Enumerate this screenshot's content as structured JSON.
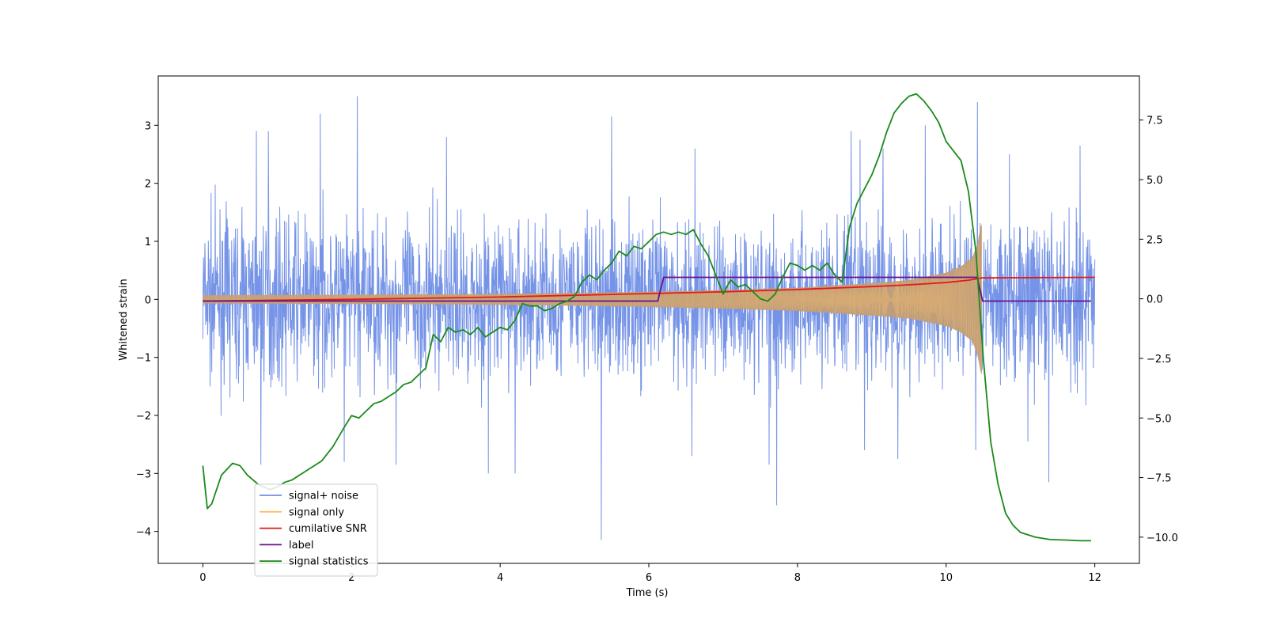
{
  "chart_data": {
    "type": "line",
    "title": "",
    "xlabel": "Time (s)",
    "ylabel": "Whitened strain",
    "y2label": "",
    "xlim": [
      -0.6,
      12.6
    ],
    "ylim": [
      -4.55,
      3.85
    ],
    "y2lim": [
      -11.1,
      9.35
    ],
    "x_ticks": [
      0,
      2,
      4,
      6,
      8,
      10,
      12
    ],
    "x_tick_labels": [
      "0",
      "2",
      "4",
      "6",
      "8",
      "10",
      "12"
    ],
    "y_ticks": [
      3,
      2,
      1,
      0,
      -1,
      -2,
      -3,
      -4
    ],
    "y_tick_labels": [
      "3",
      "2",
      "1",
      "0",
      "−1",
      "−2",
      "−3",
      "−4"
    ],
    "y2_ticks": [
      7.5,
      5.0,
      2.5,
      0.0,
      -2.5,
      -5.0,
      -7.5,
      -10.0
    ],
    "y2_tick_labels": [
      "7.5",
      "5.0",
      "2.5",
      "0.0",
      "−2.5",
      "−5.0",
      "−7.5",
      "−10.0"
    ],
    "grid": false,
    "legend_position": "lower-left",
    "series": [
      {
        "name": "signal+ noise",
        "axis": "left",
        "color": "#6f8ee6",
        "x_range": [
          0,
          12
        ],
        "typical_amplitude": [
          -1.2,
          1.3
        ],
        "spikes": [
          {
            "x": 1.58,
            "y": 3.2
          },
          {
            "x": 2.08,
            "y": 3.5
          },
          {
            "x": 0.72,
            "y": 2.9
          },
          {
            "x": 0.88,
            "y": 2.9
          },
          {
            "x": 3.28,
            "y": 2.8
          },
          {
            "x": 5.5,
            "y": 3.15
          },
          {
            "x": 10.42,
            "y": 3.4
          },
          {
            "x": 9.72,
            "y": 3.0
          },
          {
            "x": 8.72,
            "y": 2.9
          },
          {
            "x": 8.84,
            "y": 2.75
          },
          {
            "x": 6.62,
            "y": 2.6
          },
          {
            "x": 11.8,
            "y": 2.65
          },
          {
            "x": 9.15,
            "y": 2.6
          },
          {
            "x": 10.85,
            "y": 2.5
          },
          {
            "x": 5.36,
            "y": -4.15
          },
          {
            "x": 7.72,
            "y": -3.55
          },
          {
            "x": 11.38,
            "y": -3.15
          },
          {
            "x": 3.84,
            "y": -3.0
          },
          {
            "x": 4.2,
            "y": -3.0
          },
          {
            "x": 0.78,
            "y": -2.85
          },
          {
            "x": 2.6,
            "y": -2.85
          },
          {
            "x": 7.62,
            "y": -2.85
          },
          {
            "x": 1.9,
            "y": -2.8
          },
          {
            "x": 6.58,
            "y": -2.7
          },
          {
            "x": 8.9,
            "y": -2.6
          },
          {
            "x": 9.35,
            "y": -2.75
          },
          {
            "x": 10.4,
            "y": -2.6
          },
          {
            "x": 11.1,
            "y": -2.45
          }
        ]
      },
      {
        "name": "signal only",
        "axis": "left",
        "color": "#ffbf66",
        "fill_color": "#c19d75",
        "x_range": [
          0,
          10.48
        ],
        "envelope_x": [
          0,
          1,
          2,
          3,
          4,
          5,
          6,
          7,
          8,
          9,
          9.5,
          10,
          10.2,
          10.35,
          10.42,
          10.47
        ],
        "envelope_amplitude": [
          0.07,
          0.075,
          0.08,
          0.085,
          0.095,
          0.11,
          0.13,
          0.16,
          0.2,
          0.28,
          0.33,
          0.46,
          0.57,
          0.72,
          0.95,
          1.3
        ]
      },
      {
        "name": "cumilative SNR",
        "axis": "left",
        "color": "#e31a1c",
        "x": [
          0,
          1,
          2,
          3,
          4,
          5,
          6,
          7,
          8,
          9,
          9.5,
          10,
          10.3,
          10.48,
          12
        ],
        "y": [
          -0.03,
          -0.015,
          0.0,
          0.02,
          0.04,
          0.07,
          0.1,
          0.13,
          0.17,
          0.22,
          0.25,
          0.29,
          0.33,
          0.37,
          0.38
        ]
      },
      {
        "name": "label",
        "axis": "left",
        "color": "#6a0f8e",
        "x": [
          0,
          6.12,
          6.2,
          10.42,
          10.49,
          11.95
        ],
        "y": [
          -0.03,
          -0.03,
          0.38,
          0.38,
          -0.03,
          -0.03
        ]
      },
      {
        "name": "signal statistics",
        "axis": "right",
        "color": "#1a8a1a",
        "x": [
          0,
          0.06,
          0.12,
          0.25,
          0.4,
          0.5,
          0.6,
          0.75,
          0.9,
          1.0,
          1.1,
          1.2,
          1.3,
          1.45,
          1.6,
          1.75,
          1.9,
          2.0,
          2.1,
          2.2,
          2.3,
          2.4,
          2.5,
          2.6,
          2.7,
          2.8,
          2.9,
          3.0,
          3.1,
          3.2,
          3.3,
          3.4,
          3.5,
          3.6,
          3.7,
          3.8,
          3.9,
          4.0,
          4.1,
          4.2,
          4.3,
          4.4,
          4.5,
          4.6,
          4.7,
          4.8,
          4.9,
          5.0,
          5.1,
          5.2,
          5.3,
          5.4,
          5.5,
          5.6,
          5.7,
          5.8,
          5.9,
          6.0,
          6.1,
          6.2,
          6.3,
          6.4,
          6.5,
          6.6,
          6.7,
          6.8,
          6.9,
          7.0,
          7.1,
          7.2,
          7.3,
          7.4,
          7.5,
          7.6,
          7.7,
          7.8,
          7.9,
          8.0,
          8.1,
          8.2,
          8.3,
          8.4,
          8.5,
          8.6,
          8.7,
          8.8,
          8.9,
          9.0,
          9.1,
          9.2,
          9.3,
          9.4,
          9.5,
          9.6,
          9.7,
          9.8,
          9.9,
          10.0,
          10.1,
          10.2,
          10.3,
          10.4,
          10.5,
          10.6,
          10.7,
          10.8,
          10.9,
          11.0,
          11.2,
          11.4,
          11.6,
          11.8,
          11.95
        ],
        "y": [
          -7.0,
          -8.8,
          -8.6,
          -7.4,
          -6.9,
          -7.0,
          -7.4,
          -7.8,
          -8.0,
          -7.9,
          -7.7,
          -7.6,
          -7.4,
          -7.1,
          -6.8,
          -6.2,
          -5.4,
          -4.9,
          -5.0,
          -4.7,
          -4.4,
          -4.3,
          -4.1,
          -3.9,
          -3.6,
          -3.5,
          -3.2,
          -2.9,
          -1.5,
          -1.8,
          -1.2,
          -1.4,
          -1.3,
          -1.5,
          -1.2,
          -1.6,
          -1.4,
          -1.2,
          -1.3,
          -0.9,
          -0.2,
          -0.3,
          -0.3,
          -0.5,
          -0.4,
          -0.2,
          -0.1,
          0.1,
          0.7,
          1.0,
          0.8,
          1.2,
          1.5,
          2.0,
          1.8,
          2.2,
          2.1,
          2.4,
          2.7,
          2.8,
          2.7,
          2.8,
          2.7,
          2.9,
          2.3,
          1.8,
          1.0,
          0.2,
          0.8,
          0.5,
          0.6,
          0.3,
          0.0,
          -0.1,
          0.2,
          0.9,
          1.5,
          1.4,
          1.2,
          1.4,
          1.2,
          1.5,
          1.0,
          0.7,
          3.0,
          4.0,
          4.6,
          5.2,
          6.0,
          7.0,
          7.8,
          8.2,
          8.5,
          8.6,
          8.3,
          7.9,
          7.4,
          6.6,
          6.2,
          5.8,
          4.5,
          2.0,
          -2.5,
          -6.0,
          -7.8,
          -9.0,
          -9.5,
          -9.8,
          -10.0,
          -10.1,
          -10.12,
          -10.15,
          -10.15
        ]
      }
    ]
  }
}
